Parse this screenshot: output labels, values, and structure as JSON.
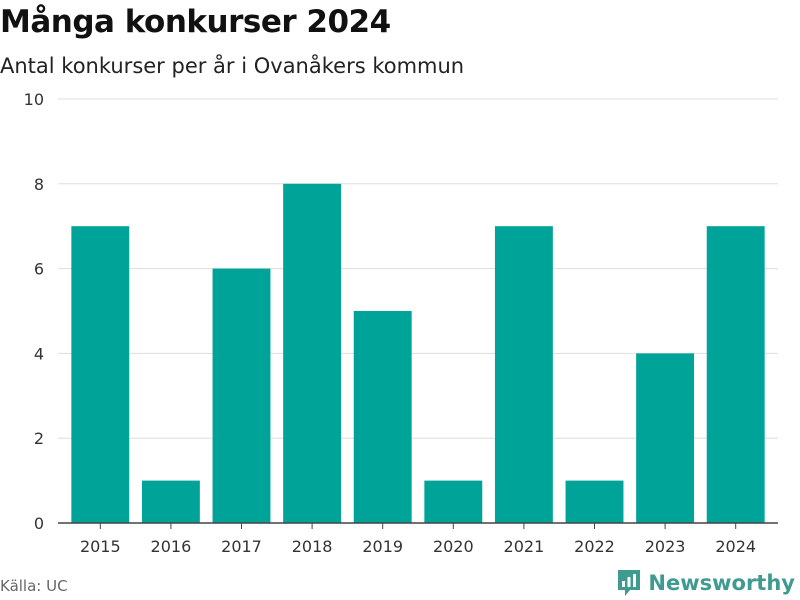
{
  "chart_data": {
    "type": "bar",
    "title": "Många konkurser 2024",
    "subtitle": "Antal konkurser per år i Ovanåkers kommun",
    "categories": [
      "2015",
      "2016",
      "2017",
      "2018",
      "2019",
      "2020",
      "2021",
      "2022",
      "2023",
      "2024"
    ],
    "values": [
      7,
      1,
      6,
      8,
      5,
      1,
      7,
      1,
      4,
      7
    ],
    "ylim": [
      0,
      10
    ],
    "yticks": [
      0,
      2,
      4,
      6,
      8,
      10
    ],
    "grid": true,
    "legend": "none",
    "bar_color": "#00a398",
    "source": "Källa: UC"
  },
  "brand": {
    "name": "Newsworthy",
    "icon": "newsworthy-logo-icon",
    "color": "#3f9a8f"
  }
}
